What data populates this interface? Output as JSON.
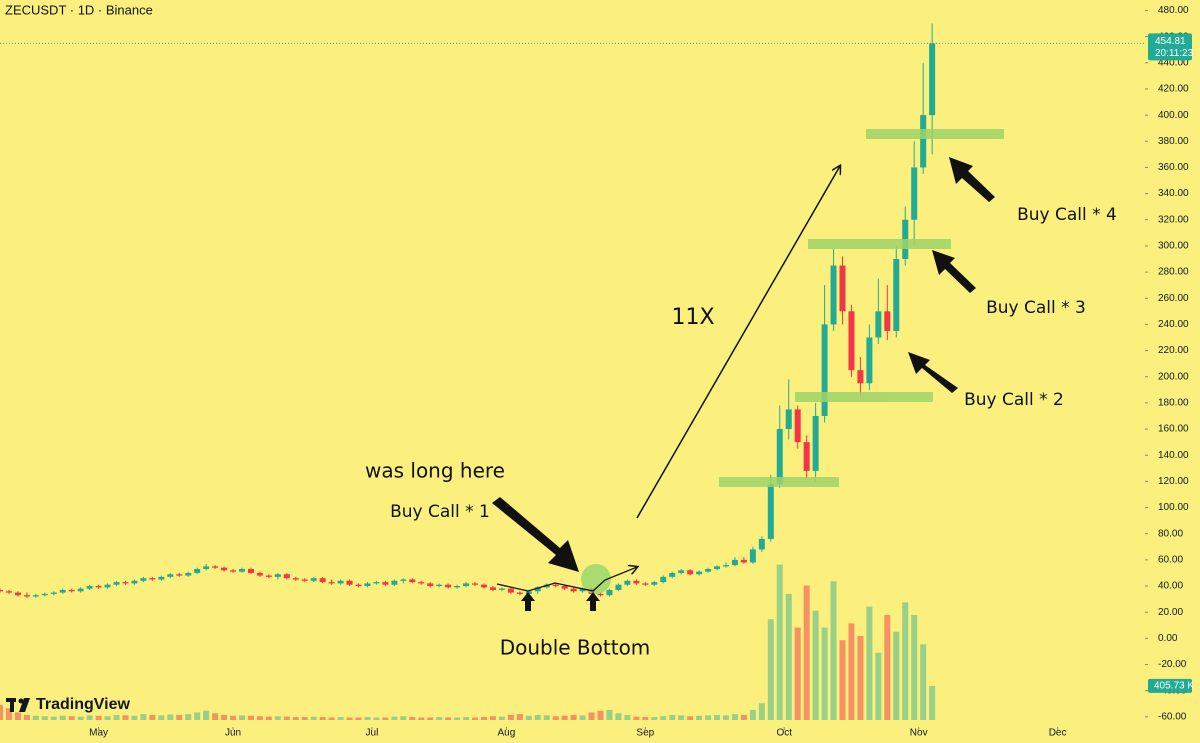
{
  "chart_data": {
    "type": "candlestick",
    "title": "ZECUSDT · 1D · Binance",
    "x": [
      0,
      2,
      4,
      6,
      8,
      10,
      12,
      14,
      16,
      18,
      20,
      22,
      24,
      26,
      28,
      30,
      32,
      34,
      36,
      38,
      40,
      42,
      44,
      46,
      48,
      50,
      52,
      54,
      56,
      58,
      60,
      62,
      64,
      66,
      68,
      70,
      72,
      74,
      76,
      78,
      80,
      82,
      84,
      86,
      88,
      90,
      92,
      94,
      96,
      98,
      100,
      102,
      104,
      106,
      108,
      110,
      112,
      114,
      116,
      118,
      120,
      122,
      124,
      126,
      128,
      130,
      132,
      134,
      136,
      138,
      140,
      142,
      144,
      146,
      148,
      150,
      152,
      154,
      156,
      158,
      160,
      162,
      164,
      166,
      168,
      170,
      172,
      174,
      176,
      178,
      180,
      182,
      184,
      186,
      188,
      190,
      192,
      194,
      196,
      198,
      200,
      202,
      204,
      206,
      208
    ],
    "open": [
      37,
      36,
      35,
      33,
      32,
      33,
      34,
      35,
      37,
      36,
      38,
      40,
      39,
      41,
      43,
      42,
      44,
      46,
      45,
      47,
      49,
      48,
      50,
      53,
      55,
      54,
      52,
      51,
      53,
      50,
      48,
      47,
      49,
      46,
      45,
      44,
      46,
      43,
      42,
      44,
      41,
      40,
      42,
      43,
      41,
      44,
      45,
      43,
      42,
      40,
      41,
      39,
      40,
      42,
      41,
      39,
      37,
      38,
      35,
      34,
      36,
      39,
      41,
      40,
      38,
      36,
      38,
      34,
      33,
      37,
      41,
      44,
      42,
      41,
      43,
      47,
      50,
      52,
      49,
      51,
      53,
      55,
      56,
      60,
      58,
      68,
      76,
      118,
      160,
      175,
      150,
      128,
      170,
      240,
      285,
      250,
      205,
      195,
      230,
      250,
      235,
      290,
      320,
      360,
      400
    ],
    "high": [
      38,
      37,
      36,
      35,
      34,
      35,
      36,
      38,
      38,
      39,
      41,
      41,
      42,
      44,
      44,
      45,
      47,
      47,
      48,
      50,
      50,
      51,
      54,
      57,
      56,
      55,
      53,
      54,
      54,
      51,
      49,
      50,
      50,
      47,
      46,
      47,
      47,
      45,
      45,
      45,
      42,
      43,
      44,
      44,
      45,
      46,
      46,
      44,
      43,
      42,
      42,
      41,
      43,
      43,
      42,
      40,
      39,
      39,
      36,
      37,
      40,
      42,
      42,
      41,
      39,
      39,
      39,
      35,
      38,
      42,
      45,
      45,
      43,
      44,
      48,
      51,
      53,
      53,
      52,
      54,
      56,
      58,
      62,
      62,
      70,
      78,
      125,
      178,
      198,
      178,
      155,
      180,
      270,
      298,
      292,
      255,
      215,
      240,
      275,
      270,
      300,
      330,
      380,
      440,
      470
    ],
    "low": [
      35,
      34,
      32,
      31,
      31,
      32,
      33,
      34,
      35,
      35,
      37,
      38,
      38,
      40,
      41,
      41,
      43,
      44,
      44,
      46,
      47,
      47,
      49,
      52,
      53,
      51,
      50,
      50,
      49,
      47,
      46,
      45,
      45,
      44,
      43,
      43,
      42,
      41,
      41,
      40,
      39,
      39,
      41,
      40,
      40,
      42,
      42,
      41,
      39,
      39,
      38,
      38,
      39,
      40,
      38,
      36,
      36,
      34,
      33,
      33,
      34,
      38,
      39,
      37,
      35,
      35,
      33,
      32,
      32,
      36,
      40,
      41,
      40,
      40,
      42,
      46,
      49,
      48,
      48,
      50,
      52,
      54,
      55,
      57,
      57,
      66,
      74,
      115,
      152,
      145,
      122,
      120,
      165,
      235,
      240,
      200,
      185,
      190,
      225,
      228,
      230,
      285,
      300,
      355,
      370
    ],
    "close": [
      36,
      35,
      33,
      32,
      33,
      34,
      35,
      37,
      36,
      38,
      40,
      39,
      41,
      43,
      42,
      44,
      46,
      45,
      47,
      49,
      48,
      50,
      53,
      55,
      54,
      52,
      51,
      53,
      50,
      48,
      47,
      49,
      46,
      45,
      44,
      46,
      43,
      42,
      44,
      41,
      40,
      42,
      43,
      41,
      44,
      45,
      43,
      42,
      40,
      41,
      39,
      40,
      42,
      41,
      39,
      37,
      38,
      35,
      34,
      36,
      39,
      41,
      40,
      38,
      36,
      38,
      34,
      33,
      37,
      41,
      44,
      42,
      41,
      43,
      47,
      50,
      52,
      49,
      51,
      53,
      55,
      56,
      60,
      58,
      68,
      76,
      118,
      160,
      175,
      150,
      128,
      170,
      240,
      285,
      250,
      205,
      195,
      230,
      250,
      235,
      290,
      320,
      360,
      400,
      454.81
    ],
    "volume": [
      180,
      140,
      90,
      60,
      50,
      45,
      40,
      50,
      45,
      40,
      55,
      50,
      45,
      60,
      55,
      50,
      70,
      60,
      55,
      65,
      60,
      70,
      90,
      110,
      80,
      60,
      50,
      55,
      50,
      45,
      40,
      45,
      40,
      35,
      35,
      40,
      35,
      30,
      35,
      30,
      30,
      35,
      30,
      30,
      40,
      45,
      35,
      30,
      30,
      35,
      30,
      30,
      35,
      30,
      35,
      45,
      40,
      60,
      70,
      50,
      60,
      55,
      45,
      50,
      60,
      55,
      90,
      110,
      120,
      80,
      60,
      40,
      35,
      35,
      45,
      60,
      55,
      45,
      50,
      55,
      60,
      55,
      70,
      60,
      120,
      200,
      1200,
      1850,
      1500,
      1100,
      1600,
      1300,
      1100,
      1650,
      950,
      1150,
      1000,
      1350,
      800,
      1250,
      1050,
      1400,
      1250,
      900,
      405.73
    ],
    "price_label": "454.81",
    "countdown": "20:11:23",
    "volume_label": "405.73 K",
    "up_color": "#22ab94",
    "down_color": "#f23645",
    "grid": false,
    "xlim": [
      0,
      255.5
    ],
    "xticks": [
      {
        "value": 22,
        "label": "May"
      },
      {
        "value": 52,
        "label": "Jun"
      },
      {
        "value": 83,
        "label": "Jul"
      },
      {
        "value": 113,
        "label": "Aug"
      },
      {
        "value": 144,
        "label": "Sep"
      },
      {
        "value": 175,
        "label": "Oct"
      },
      {
        "value": 205,
        "label": "Nov"
      },
      {
        "value": 236,
        "label": "Dec"
      }
    ],
    "ylim": [
      -80,
      488
    ],
    "yticks": [
      {
        "value": 480,
        "label": "480.00"
      },
      {
        "value": 460,
        "label": "460.00"
      },
      {
        "value": 440,
        "label": "440.00"
      },
      {
        "value": 420,
        "label": "420.00"
      },
      {
        "value": 400,
        "label": "400.00"
      },
      {
        "value": 380,
        "label": "380.00"
      },
      {
        "value": 360,
        "label": "360.00"
      },
      {
        "value": 340,
        "label": "340.00"
      },
      {
        "value": 320,
        "label": "320.00"
      },
      {
        "value": 300,
        "label": "300.00"
      },
      {
        "value": 280,
        "label": "280.00"
      },
      {
        "value": 260,
        "label": "260.00"
      },
      {
        "value": 240,
        "label": "240.00"
      },
      {
        "value": 220,
        "label": "220.00"
      },
      {
        "value": 200,
        "label": "200.00"
      },
      {
        "value": 180,
        "label": "180.00"
      },
      {
        "value": 160,
        "label": "160.00"
      },
      {
        "value": 140,
        "label": "140.00"
      },
      {
        "value": 120,
        "label": "120.00"
      },
      {
        "value": 100,
        "label": "100.00"
      },
      {
        "value": 80,
        "label": "80.00"
      },
      {
        "value": 60,
        "label": "60.00"
      },
      {
        "value": 40,
        "label": "40.00"
      },
      {
        "value": 20,
        "label": "20.00"
      },
      {
        "value": 0,
        "label": "0.00"
      },
      {
        "value": -20,
        "label": "-20.00"
      },
      {
        "value": -40,
        "label": "-40.00"
      },
      {
        "value": -60,
        "label": "-60.00"
      }
    ],
    "vlim": [
      0,
      2380
    ],
    "annotations": {
      "gain": "11X",
      "long": "was long here",
      "call1": "Buy Call * 1",
      "call2": "Buy Call * 2",
      "call3": "Buy Call * 3",
      "call4": "Buy Call * 4",
      "pattern": "Double Bottom"
    },
    "brand": "TradingView"
  }
}
